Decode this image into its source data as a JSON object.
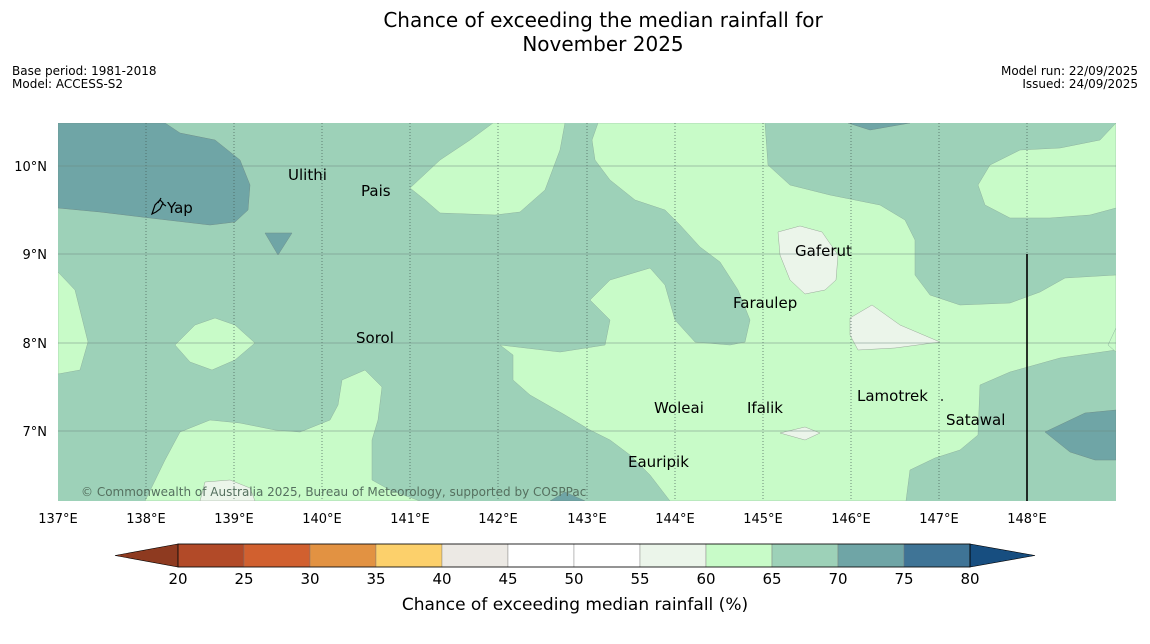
{
  "header": {
    "title_line1": "Chance of exceeding the median rainfall for",
    "title_line2": "November 2025",
    "base_period": "Base period: 1981-2018",
    "model": "Model: ACCESS-S2",
    "model_run": "Model run: 22/09/2025",
    "issued": "Issued: 24/09/2025"
  },
  "map": {
    "longitude_ticks": [
      "137°E",
      "138°E",
      "139°E",
      "140°E",
      "141°E",
      "142°E",
      "143°E",
      "144°E",
      "145°E",
      "146°E",
      "147°E",
      "148°E"
    ],
    "latitude_ticks": [
      "10°N",
      "9°N",
      "8°N",
      "7°N"
    ],
    "place_labels": [
      "Ulithi",
      "Yap",
      "Pais",
      "Gaferut",
      "Faraulep",
      "Sorol",
      "Lamotrek",
      "Woleai",
      "Ifalik",
      "Satawal",
      "Eauripik"
    ],
    "copyright": "© Commonwealth of Australia 2025, Bureau of Meteorology, supported by COSPPac"
  },
  "legend": {
    "title": "Chance of exceeding median rainfall (%)",
    "tick_labels": [
      "20",
      "25",
      "30",
      "35",
      "40",
      "45",
      "50",
      "55",
      "60",
      "65",
      "70",
      "75",
      "80"
    ],
    "colors": [
      "#8e3a20",
      "#b24a28",
      "#d1602f",
      "#e29242",
      "#fcd06b",
      "#ece9e4",
      "#ffffff",
      "#ffffff",
      "#ebf5ea",
      "#c8fbc8",
      "#9dd1b8",
      "#6fa5a6",
      "#3f7496",
      "#174e80"
    ]
  }
}
